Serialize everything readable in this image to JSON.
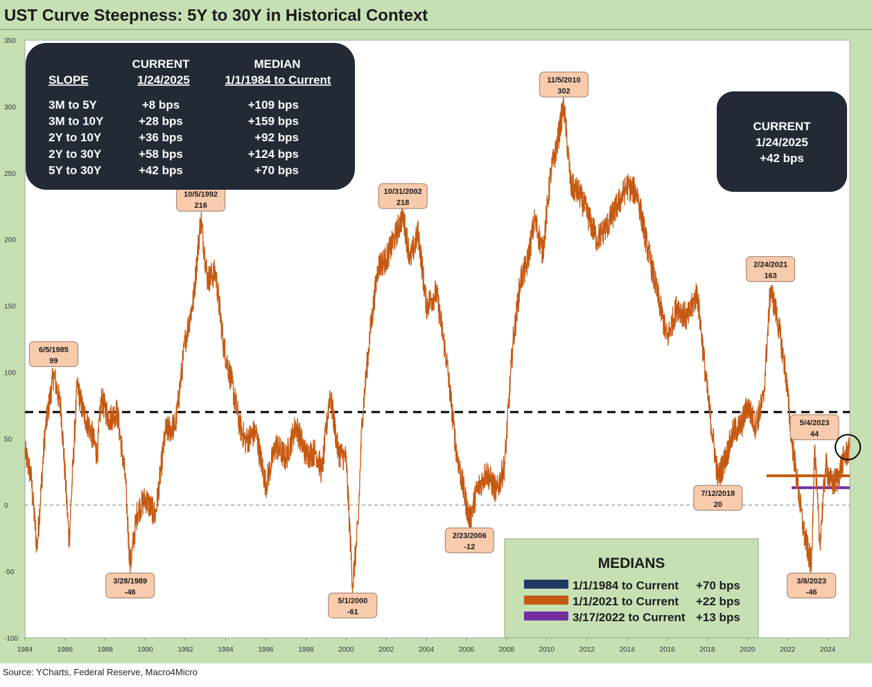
{
  "title": "UST Curve Steepness: 5Y to 30Y in Historical Context",
  "source": "Source: YCharts, Federal Reserve, Macro4Micro",
  "colors": {
    "frame": "#c6e0b4",
    "series": "#c65911",
    "median_all": "#000000",
    "median_2021": "#c65911",
    "median_2022": "#7030a0",
    "box_dark": "#222a35",
    "callout_fill": "#f8cbad",
    "medians_fill": "#c6e0b4",
    "legend_navy": "#1f3864"
  },
  "slope_table": {
    "head_current_1": "CURRENT",
    "head_current_2": "1/24/2025",
    "head_median_1": "MEDIAN",
    "head_median_2": "1/1/1984 to Current",
    "head_slope": "SLOPE",
    "rows": [
      {
        "slope": "3M to 5Y",
        "current": "+8  bps",
        "median": "+109 bps"
      },
      {
        "slope": "3M to 10Y",
        "current": "+28 bps",
        "median": "+159 bps"
      },
      {
        "slope": "2Y to 10Y",
        "current": "+36 bps",
        "median": "+92 bps"
      },
      {
        "slope": "2Y to 30Y",
        "current": "+58 bps",
        "median": "+124 bps"
      },
      {
        "slope": "5Y to 30Y",
        "current": "+42 bps",
        "median": "+70 bps"
      }
    ]
  },
  "current_box": {
    "line1": "CURRENT",
    "line2": "1/24/2025",
    "line3": "+42 bps"
  },
  "medians_box": {
    "title": "MEDIANS",
    "items": [
      {
        "label": "1/1/1984 to Current",
        "value": "+70 bps",
        "color": "#1f3864"
      },
      {
        "label": "1/1/2021 to Current",
        "value": "+22 bps",
        "color": "#c65911"
      },
      {
        "label": "3/17/2022 to Current",
        "value": "+13 bps",
        "color": "#7030a0"
      }
    ]
  },
  "chart_data": {
    "type": "line",
    "title": "UST Curve Steepness: 5Y to 30Y in Historical Context",
    "xlabel": "",
    "ylabel": "",
    "xlim": [
      1984,
      2025.1
    ],
    "ylim": [
      -100,
      350
    ],
    "yticks": [
      -100,
      -50,
      0,
      50,
      100,
      150,
      200,
      250,
      300,
      350
    ],
    "xticks": [
      "1984",
      "1986",
      "1988",
      "1990",
      "1992",
      "1994",
      "1996",
      "1998",
      "2000",
      "2002",
      "2004",
      "2006",
      "2008",
      "2010",
      "2012",
      "2014",
      "2016",
      "2018",
      "2020",
      "2022",
      "2024"
    ],
    "series": [
      {
        "name": "5Y to 30Y spread (bps)",
        "x": [
          1984.0,
          1984.3,
          1984.6,
          1985.0,
          1985.43,
          1985.8,
          1986.2,
          1986.6,
          1986.9,
          1987.3,
          1987.6,
          1987.8,
          1988.2,
          1988.6,
          1989.0,
          1989.24,
          1989.6,
          1990.0,
          1990.5,
          1991.0,
          1991.5,
          1992.0,
          1992.4,
          1992.76,
          1993.1,
          1993.5,
          1993.9,
          1994.3,
          1994.7,
          1995.0,
          1995.5,
          1996.0,
          1996.5,
          1997.0,
          1997.5,
          1998.0,
          1998.5,
          1998.8,
          1999.2,
          1999.6,
          2000.0,
          2000.33,
          2000.6,
          2000.8,
          2001.2,
          2001.6,
          2002.0,
          2002.4,
          2002.83,
          2003.2,
          2003.6,
          2004.0,
          2004.5,
          2005.0,
          2005.5,
          2006.15,
          2006.5,
          2007.0,
          2007.5,
          2007.9,
          2008.3,
          2008.7,
          2009.0,
          2009.4,
          2009.8,
          2010.2,
          2010.5,
          2010.85,
          2011.2,
          2011.6,
          2012.0,
          2012.5,
          2013.0,
          2013.5,
          2014.0,
          2014.5,
          2015.0,
          2015.5,
          2016.0,
          2016.5,
          2017.0,
          2017.5,
          2018.0,
          2018.53,
          2018.9,
          2019.3,
          2019.7,
          2020.0,
          2020.4,
          2020.8,
          2021.15,
          2021.5,
          2021.9,
          2022.2,
          2022.5,
          2022.8,
          2023.19,
          2023.34,
          2023.6,
          2023.9,
          2024.2,
          2024.5,
          2024.8,
          2025.07
        ],
        "values": [
          40,
          22,
          -33,
          55,
          99,
          72,
          -27,
          90,
          70,
          55,
          38,
          80,
          65,
          70,
          20,
          -46,
          -5,
          5,
          -8,
          55,
          60,
          125,
          155,
          216,
          170,
          175,
          120,
          92,
          60,
          48,
          55,
          15,
          45,
          35,
          60,
          38,
          40,
          25,
          85,
          40,
          35,
          -61,
          -15,
          65,
          130,
          180,
          185,
          200,
          218,
          185,
          205,
          150,
          160,
          110,
          40,
          -12,
          10,
          25,
          10,
          30,
          120,
          170,
          180,
          215,
          190,
          250,
          270,
          302,
          240,
          235,
          220,
          200,
          210,
          225,
          240,
          235,
          195,
          160,
          125,
          150,
          140,
          160,
          85,
          20,
          35,
          55,
          60,
          75,
          60,
          80,
          163,
          140,
          100,
          50,
          15,
          -20,
          -46,
          44,
          -30,
          30,
          15,
          20,
          35,
          42
        ]
      }
    ],
    "reference_lines": [
      {
        "name": "Median 1/1/1984 to Current",
        "value": 70,
        "style": "dashed",
        "from": 1984
      },
      {
        "name": "Median 1/1/2021 to Current",
        "value": 22,
        "from": 2020.95
      },
      {
        "name": "Median 3/17/2022 to Current",
        "value": 13,
        "from": 2022.2
      }
    ],
    "annotations": [
      {
        "date": "6/5/1985",
        "value": "99",
        "x": 1985.43,
        "y": 99,
        "pos": "above"
      },
      {
        "date": "3/28/1989",
        "value": "-46",
        "x": 1989.24,
        "y": -46,
        "pos": "below"
      },
      {
        "date": "10/5/1992",
        "value": "216",
        "x": 1992.76,
        "y": 216,
        "pos": "above"
      },
      {
        "date": "5/1/2000",
        "value": "-61",
        "x": 2000.33,
        "y": -61,
        "pos": "below"
      },
      {
        "date": "10/31/2002",
        "value": "218",
        "x": 2002.83,
        "y": 218,
        "pos": "above"
      },
      {
        "date": "2/23/2006",
        "value": "-12",
        "x": 2006.15,
        "y": -12,
        "pos": "below"
      },
      {
        "date": "11/5/2010",
        "value": "302",
        "x": 2010.85,
        "y": 302,
        "pos": "above"
      },
      {
        "date": "7/12/2018",
        "value": "20",
        "x": 2018.53,
        "y": 20,
        "pos": "below"
      },
      {
        "date": "2/24/2021",
        "value": "163",
        "x": 2021.15,
        "y": 163,
        "pos": "above"
      },
      {
        "date": "5/4/2023",
        "value": "44",
        "x": 2023.34,
        "y": 44,
        "pos": "above"
      },
      {
        "date": "3/8/2023",
        "value": "-46",
        "x": 2023.19,
        "y": -46,
        "pos": "below"
      }
    ],
    "current_marker": {
      "x": 2025.07,
      "y": 42
    }
  }
}
